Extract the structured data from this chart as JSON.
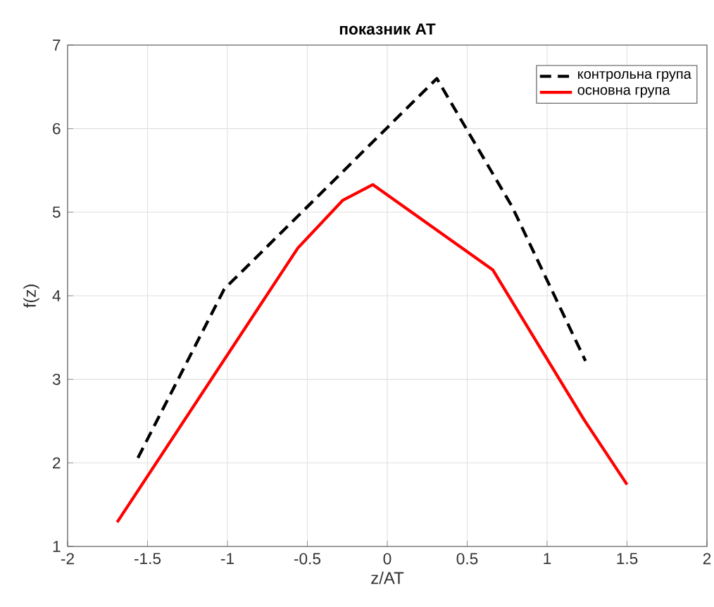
{
  "chart_data": {
    "type": "line",
    "title": "показник АТ",
    "xlabel": "z/AT",
    "ylabel": "f(z)",
    "xlim": [
      -2,
      2
    ],
    "xticks": [
      -2,
      -1.5,
      -1,
      -0.5,
      0,
      0.5,
      1,
      1.5,
      2
    ],
    "ylim": [
      1,
      7
    ],
    "yticks": [
      1,
      2,
      3,
      4,
      5,
      6,
      7
    ],
    "grid": true,
    "legend": "top right",
    "series": [
      {
        "name": "контрольна група",
        "color": "#000000",
        "line_style": "dashed",
        "x": [
          -1.56,
          -1.02,
          0.31,
          0.78,
          1.24
        ],
        "values": [
          2.06,
          4.08,
          6.6,
          5.07,
          3.22
        ]
      },
      {
        "name": "основна група",
        "color": "#ff0000",
        "line_style": "solid",
        "x": [
          -1.69,
          -0.56,
          -0.28,
          -0.09,
          0.66,
          1.23,
          1.5
        ],
        "values": [
          1.29,
          4.57,
          5.14,
          5.33,
          4.31,
          2.52,
          1.74
        ]
      }
    ]
  }
}
